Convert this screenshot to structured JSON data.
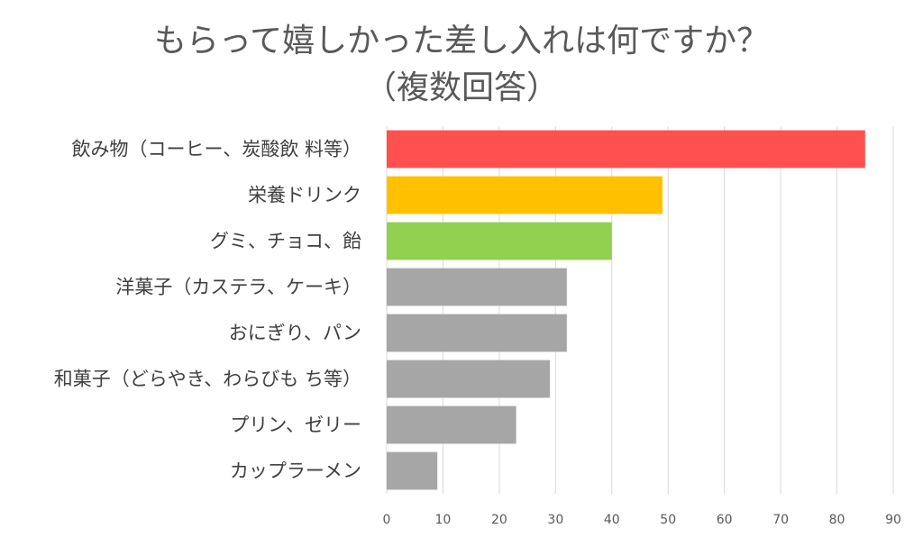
{
  "chart_data": {
    "type": "bar",
    "orientation": "horizontal",
    "title": "もらって嬉しかった差し入れは何ですか？",
    "subtitle": "（複数回答）",
    "categories": [
      "飲み物（コーヒー、炭酸飲 料等）",
      "栄養ドリンク",
      "グミ、チョコ、飴",
      "洋菓子（カステラ、ケーキ）",
      "おにぎり、パン",
      "和菓子（どらやき、わらびも ち等）",
      "プリン、ゼリー",
      "カップラーメン"
    ],
    "values": [
      85,
      49,
      40,
      32,
      32,
      29,
      23,
      9
    ],
    "colors": [
      "#ff5050",
      "#ffc000",
      "#92d050",
      "#a6a6a6",
      "#a6a6a6",
      "#a6a6a6",
      "#a6a6a6",
      "#a6a6a6"
    ],
    "xlim": [
      0,
      90
    ],
    "ticks": [
      0,
      10,
      20,
      30,
      40,
      50,
      60,
      70,
      80,
      90
    ],
    "grid": true,
    "legend": "none"
  }
}
